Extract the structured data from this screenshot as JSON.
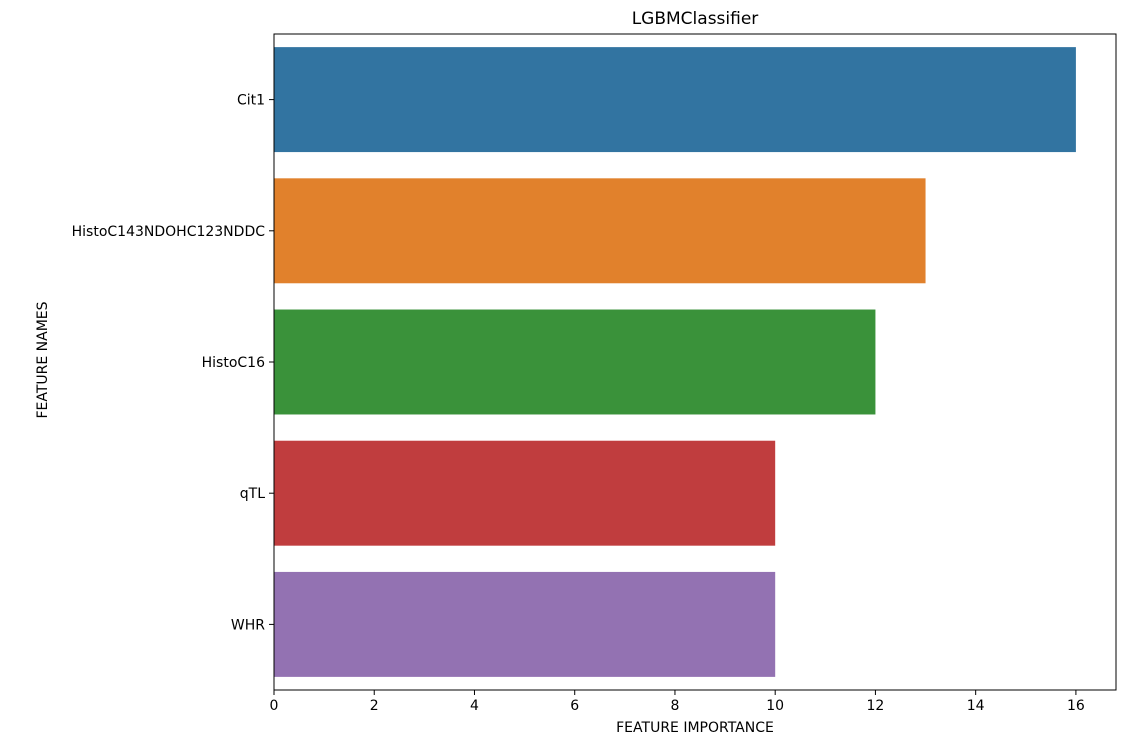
{
  "chart_data": {
    "type": "bar",
    "orientation": "horizontal",
    "title": "LGBMClassifier",
    "xlabel": "FEATURE IMPORTANCE",
    "ylabel": "FEATURE NAMES",
    "categories": [
      "Cit1",
      "HistoC143NDOHC123NDDC",
      "HistoC16",
      "qTL",
      "WHR"
    ],
    "values": [
      16,
      13,
      12,
      10,
      10
    ],
    "colors": [
      "#3274a1",
      "#e1812c",
      "#3a923a",
      "#c03d3e",
      "#9372b2"
    ],
    "xlim": [
      0,
      16.8
    ],
    "xticks": [
      0,
      2,
      4,
      6,
      8,
      10,
      12,
      14,
      16
    ],
    "grid": false,
    "legend": "none"
  }
}
